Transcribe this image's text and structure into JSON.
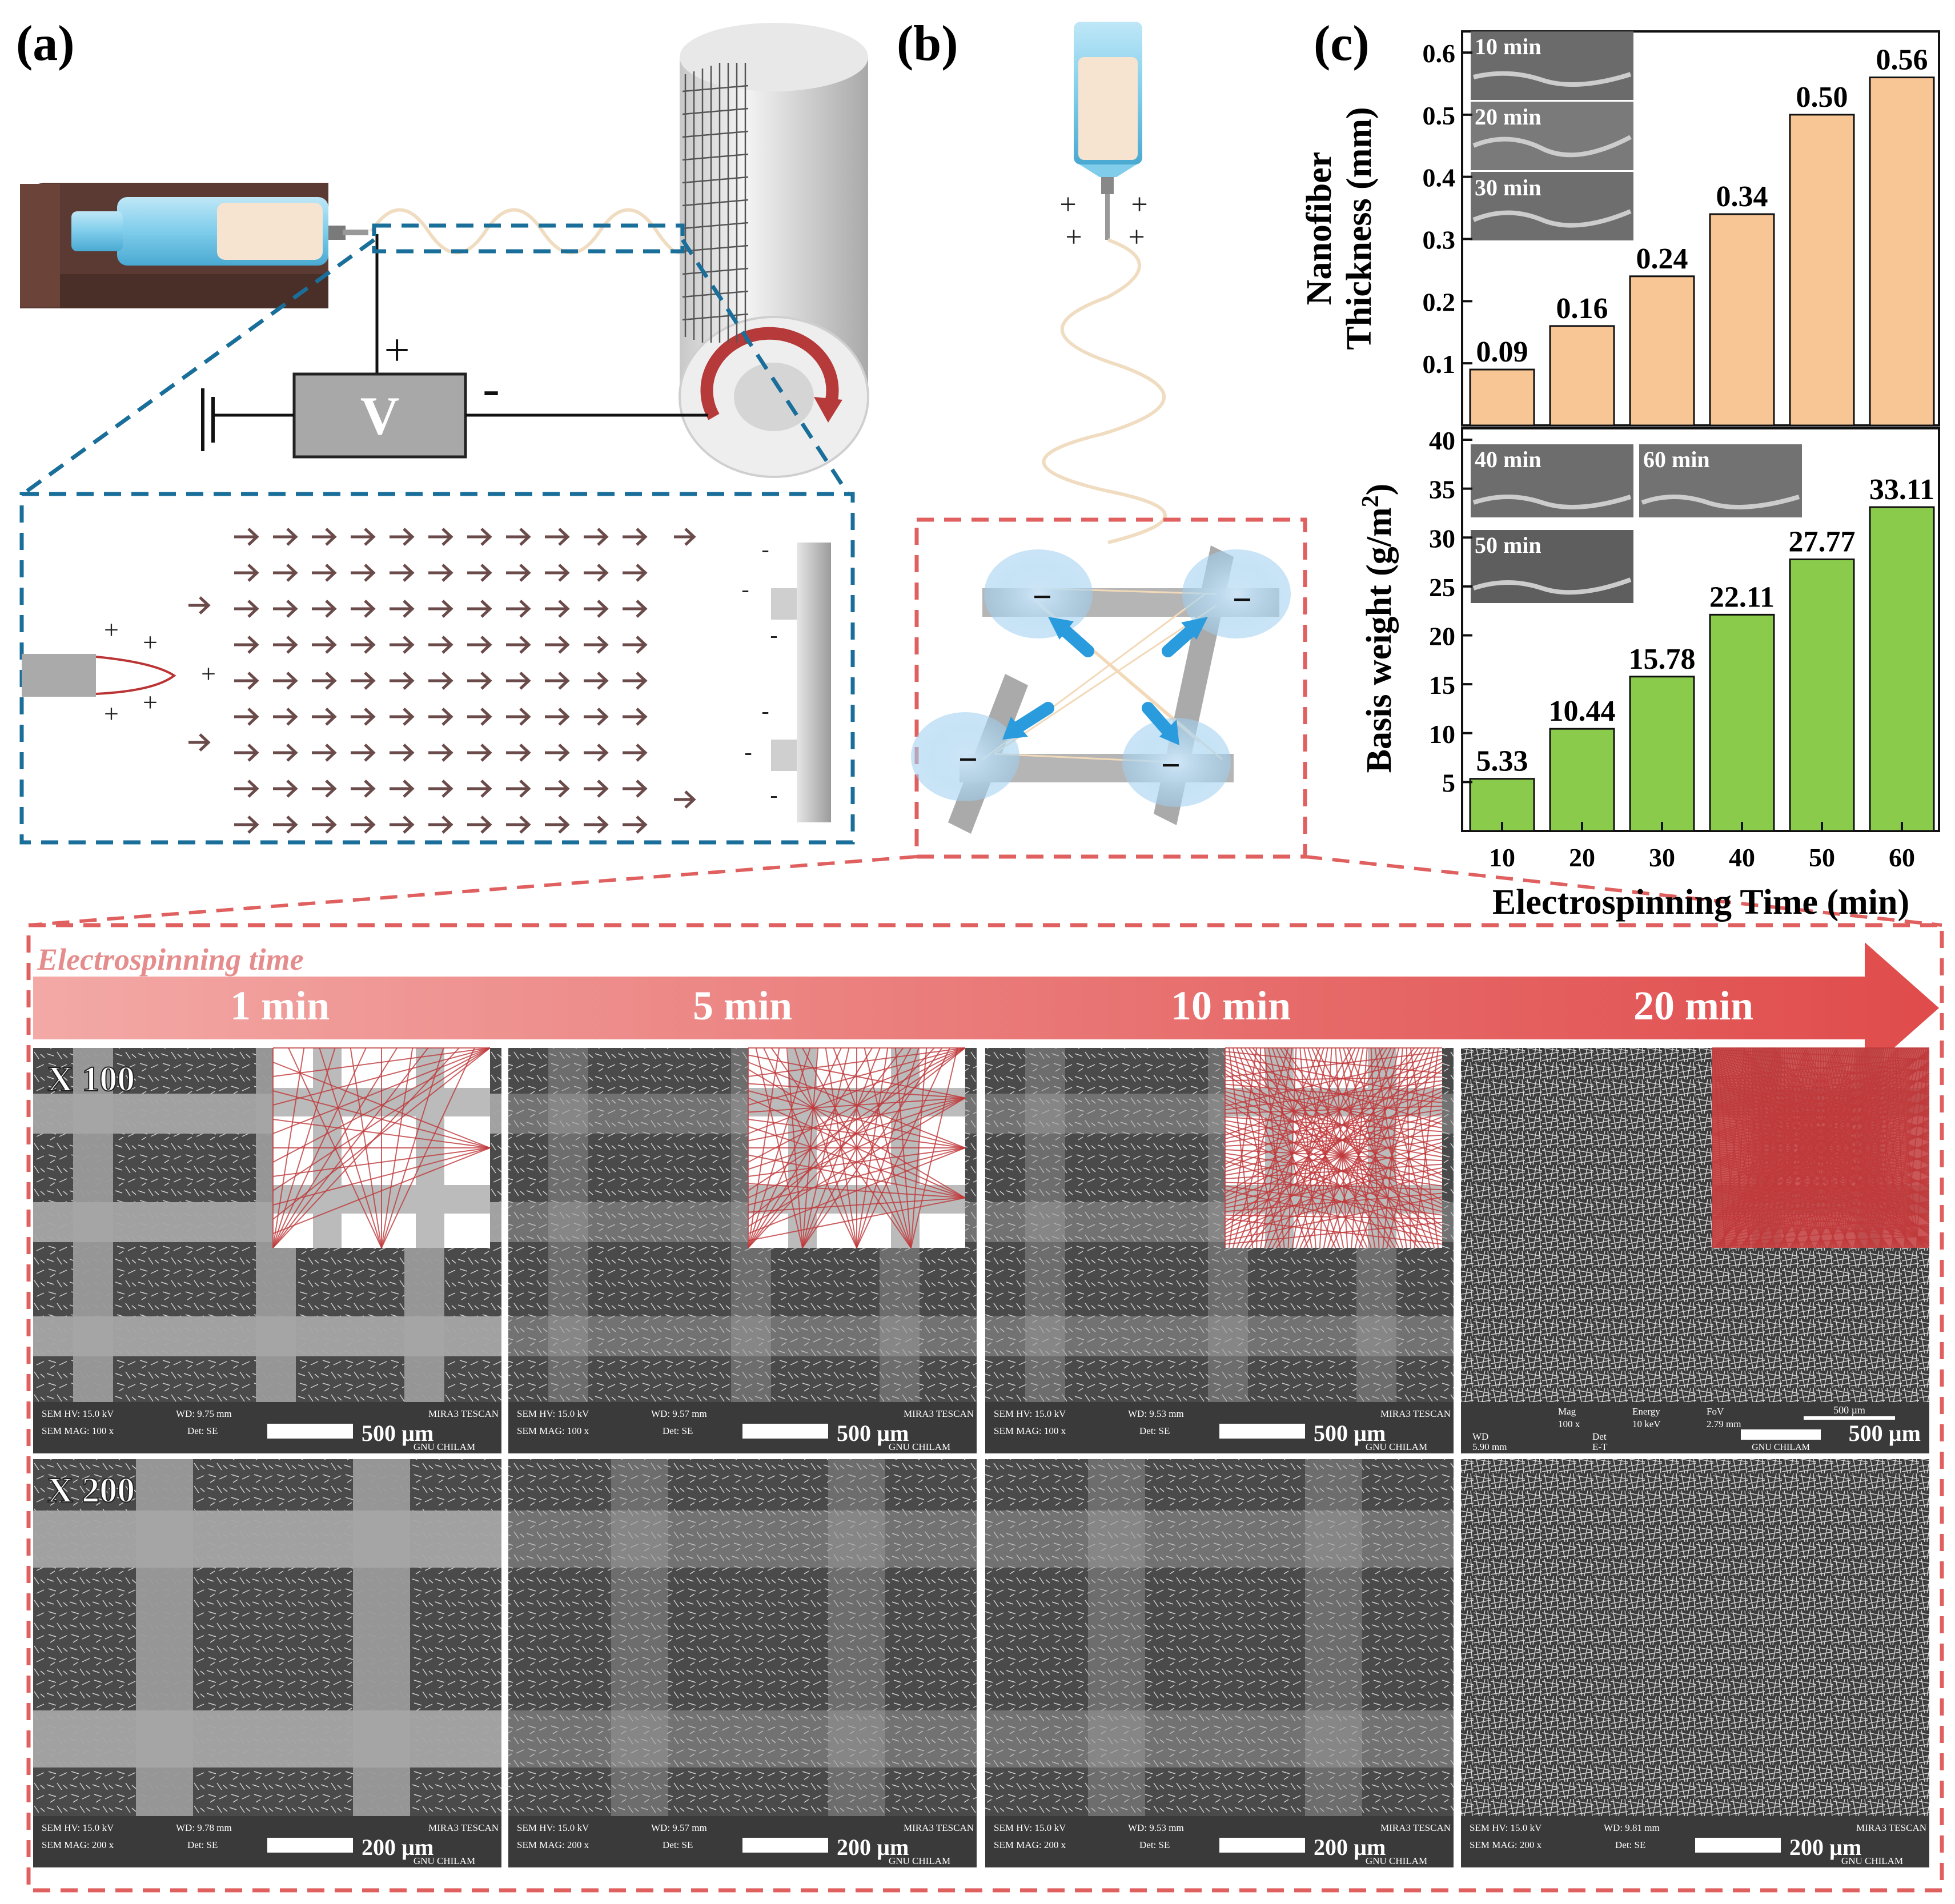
{
  "panels": {
    "a": "(a)",
    "b": "(b)",
    "c": "(c)"
  },
  "schematic": {
    "voltage": "V",
    "plus": "+",
    "minus": "-",
    "charge_minus": "−"
  },
  "chart_data": [
    {
      "type": "bar",
      "categories": [
        "10",
        "20",
        "30",
        "40",
        "50",
        "60"
      ],
      "values": [
        0.09,
        0.16,
        0.24,
        0.34,
        0.5,
        0.56
      ],
      "value_labels": [
        "0.09",
        "0.16",
        "0.24",
        "0.34",
        "0.50",
        "0.56"
      ],
      "ylabel_line1": "Nanofiber",
      "ylabel_line2": "Thickness (mm)",
      "ylim": [
        0,
        0.6
      ],
      "yticks": [
        "0.1",
        "0.2",
        "0.3",
        "0.4",
        "0.5",
        "0.6"
      ],
      "bar_color": "#F8C595",
      "insets": [
        "10 min",
        "20 min",
        "30 min"
      ]
    },
    {
      "type": "bar",
      "categories": [
        "10",
        "20",
        "30",
        "40",
        "50",
        "60"
      ],
      "values": [
        5.33,
        10.44,
        15.78,
        22.11,
        27.77,
        33.11
      ],
      "value_labels": [
        "5.33",
        "10.44",
        "15.78",
        "22.11",
        "27.77",
        "33.11"
      ],
      "ylabel_main": "Basis weight (g/m",
      "ylabel_sup": "2",
      "ylabel_end": ")",
      "ylim": [
        0,
        40
      ],
      "yticks": [
        "5",
        "10",
        "15",
        "20",
        "25",
        "30",
        "35",
        "40"
      ],
      "xlabel": "Electrospinning Time (min)",
      "bar_color": "#8BCB4C",
      "insets": [
        "40 min",
        "60 min",
        "50 min"
      ]
    }
  ],
  "sem": {
    "arrow_label": "Electrospinning time",
    "times": [
      "1 min",
      "5 min",
      "10 min",
      "20 min"
    ],
    "mag_labels": [
      "X 100",
      "X 200"
    ],
    "scale_100": "500 µm",
    "scale_200": "200 µm",
    "hv": "SEM HV: 15.0 kV",
    "mag_100": "SEM MAG: 100 x",
    "mag_200": "SEM MAG: 200 x",
    "det": "Det: SE",
    "brand": "MIRA3 TESCAN",
    "lab": "GNU CHILAM",
    "wd_row1": [
      "WD: 9.75 mm",
      "WD: 9.57 mm",
      "WD: 9.53 mm"
    ],
    "wd_row2": [
      "WD: 9.78 mm",
      "WD: 9.57 mm",
      "WD: 9.53 mm",
      "WD: 9.81 mm"
    ],
    "alt_bar": {
      "mag": "Mag",
      "mag_val": "100 x",
      "energy": "Energy",
      "energy_val": "10 keV",
      "fov": "FoV",
      "fov_val": "2.79 mm",
      "wd": "WD",
      "wd_val": "5.90 mm",
      "det": "Det",
      "det_val": "E-T",
      "scale": "500 µm",
      "lab": "GNU CHILAM"
    }
  }
}
